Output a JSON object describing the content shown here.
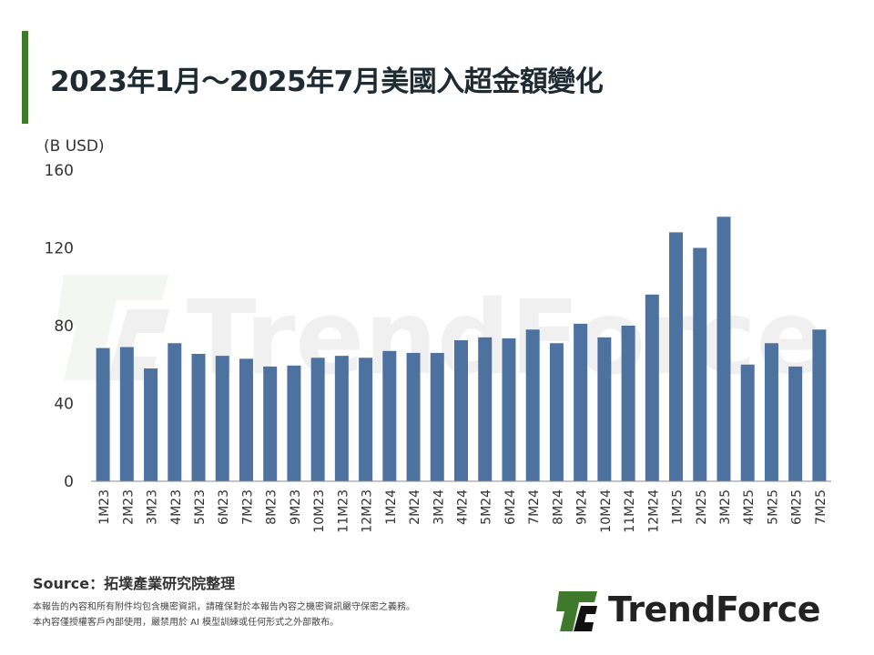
{
  "header": {
    "title": "2023年1月～2025年7月美國入超金額變化",
    "accent_color": "#3f7a2c"
  },
  "chart_data": {
    "type": "bar",
    "title": "2023年1月～2025年7月美國入超金額變化",
    "xlabel": "",
    "ylabel": "(B USD)",
    "ylim": [
      0,
      160
    ],
    "yticks": [
      0,
      40,
      80,
      120,
      160
    ],
    "grid": false,
    "bar_color": "#4e72a0",
    "categories": [
      "1M23",
      "2M23",
      "3M23",
      "4M23",
      "5M23",
      "6M23",
      "7M23",
      "8M23",
      "9M23",
      "10M23",
      "11M23",
      "12M23",
      "1M24",
      "2M24",
      "3M24",
      "4M24",
      "5M24",
      "6M24",
      "7M24",
      "8M24",
      "9M24",
      "10M24",
      "11M24",
      "12M24",
      "1M25",
      "2M25",
      "3M25",
      "4M25",
      "5M25",
      "6M25",
      "7M25"
    ],
    "values": [
      68.5,
      69,
      58,
      71,
      65.5,
      64.5,
      63,
      59,
      59.5,
      63.5,
      64.5,
      63.5,
      67,
      66,
      66,
      72.5,
      74,
      73.5,
      78,
      71,
      81,
      74,
      80,
      96,
      128,
      120,
      136,
      60,
      71,
      59,
      78
    ]
  },
  "watermark": {
    "text": "TrendForce"
  },
  "footer": {
    "source": "Source：拓墣產業研究院整理",
    "note_line1": "本報告的內容和所有附件均包含機密資訊，請確保對於本報告內容之機密資訊嚴守保密之義務。",
    "note_line2": "本內容僅授權客戶內部使用，嚴禁用於 AI 模型訓練或任何形式之外部散布。"
  },
  "logo": {
    "text": "TrendForce",
    "mark_color_green": "#3f7a2c",
    "mark_color_dark": "#111111"
  }
}
